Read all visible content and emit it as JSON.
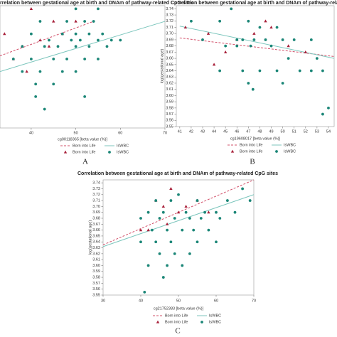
{
  "chart_data": [
    {
      "type": "scatter",
      "title": "rrelation between gestational age at birth and DNAm of pathway-related CpG sites",
      "x_label": "cg00118365 [beta value (%)]",
      "panel_label": "A",
      "xlim": [
        33,
        70
      ],
      "xticks": [
        40,
        50,
        60,
        70
      ],
      "ylim": [
        3.55,
        3.745
      ],
      "series": [
        {
          "name": "Born into Life",
          "color": "#a8203a",
          "marker": "triangle",
          "line_color": "#d2506a",
          "line_style": "dashed",
          "x": [
            40,
            45,
            34,
            38,
            42,
            47,
            50,
            36,
            44,
            39
          ],
          "values": [
            3.74,
            3.72,
            3.7,
            3.68,
            3.69,
            3.7,
            3.72,
            3.66,
            3.68,
            3.64
          ],
          "trend": {
            "x": [
              33,
              54
            ],
            "values": [
              3.665,
              3.72
            ]
          }
        },
        {
          "name": "IsWBC",
          "color": "#1b8677",
          "marker": "circle",
          "line_color": "#7cc6bd",
          "line_style": "solid",
          "x": [
            50,
            55,
            42,
            48,
            52,
            54,
            40,
            47,
            50,
            53,
            56,
            44,
            49,
            51,
            55,
            58,
            60,
            38,
            43,
            46,
            50,
            53,
            57,
            36,
            40,
            45,
            48,
            52,
            55,
            38,
            42,
            47,
            50,
            41,
            45,
            41,
            52,
            43
          ],
          "values": [
            3.74,
            3.74,
            3.72,
            3.72,
            3.72,
            3.72,
            3.7,
            3.7,
            3.7,
            3.7,
            3.7,
            3.69,
            3.69,
            3.69,
            3.69,
            3.69,
            3.69,
            3.68,
            3.68,
            3.68,
            3.68,
            3.68,
            3.68,
            3.66,
            3.66,
            3.66,
            3.66,
            3.66,
            3.66,
            3.64,
            3.64,
            3.64,
            3.64,
            3.62,
            3.62,
            3.6,
            3.6,
            3.58
          ],
          "trend": {
            "x": [
              33,
              70
            ],
            "values": [
              3.64,
              3.72
            ]
          }
        }
      ]
    },
    {
      "type": "scatter",
      "title": "Correlation between gestational age at birth and DNAm of pathway-related",
      "x_label": "cg19608017 [beta value (%)]",
      "y_label": "log(gestational age)",
      "panel_label": "B",
      "xlim": [
        40.7,
        54.5
      ],
      "xticks": [
        41,
        42,
        43,
        44,
        45,
        46,
        47,
        48,
        49,
        50,
        51,
        52,
        53,
        54
      ],
      "ylim": [
        3.55,
        3.745
      ],
      "yticks": [
        3.55,
        3.56,
        3.57,
        3.58,
        3.59,
        {
          "value": 3.6,
          "label": "3.60"
        },
        3.61,
        3.62,
        3.63,
        3.64,
        3.65,
        3.66,
        3.67,
        3.68,
        3.69,
        {
          "value": 3.7,
          "label": "3.70"
        },
        3.71,
        3.72,
        3.73,
        3.74
      ],
      "series": [
        {
          "name": "Born into Life",
          "color": "#a8203a",
          "marker": "triangle",
          "line_color": "#d2506a",
          "line_style": "dashed",
          "x": [
            41.5,
            43.5,
            45,
            46,
            47.5,
            48.5,
            49,
            50.5,
            44,
            52
          ],
          "values": [
            3.71,
            3.7,
            3.67,
            3.69,
            3.7,
            3.72,
            3.71,
            3.68,
            3.65,
            3.67
          ],
          "trend": {
            "x": [
              41,
              54.5
            ],
            "values": [
              3.693,
              3.663
            ]
          }
        },
        {
          "name": "IsWBC",
          "color": "#1b8677",
          "marker": "circle",
          "line_color": "#7cc6bd",
          "line_style": "solid",
          "x": [
            45.5,
            42,
            44.5,
            47,
            48,
            49.5,
            43,
            46,
            46.5,
            47.5,
            48.5,
            50,
            51,
            52.5,
            45,
            46,
            47.2,
            49,
            50.5,
            53,
            44.5,
            46.5,
            48,
            49.5,
            51.5,
            52.5,
            53.5,
            47,
            47.4,
            50,
            53.5,
            54
          ],
          "values": [
            3.74,
            3.72,
            3.72,
            3.72,
            3.71,
            3.71,
            3.69,
            3.69,
            3.69,
            3.69,
            3.69,
            3.69,
            3.69,
            3.69,
            3.68,
            3.68,
            3.68,
            3.68,
            3.66,
            3.66,
            3.64,
            3.64,
            3.64,
            3.64,
            3.64,
            3.64,
            3.64,
            3.62,
            3.61,
            3.62,
            3.57,
            3.58
          ],
          "trend": {
            "x": [
              41,
              54.5
            ],
            "values": [
              3.712,
              3.66
            ]
          }
        }
      ]
    },
    {
      "type": "scatter",
      "title": "Correlation between gestational age at birth and DNAm of pathway-related CpG sites",
      "x_label": "cg21752383 [beta value (%)]",
      "y_label": "log(gestational age)",
      "panel_label": "C",
      "xlim": [
        30,
        70
      ],
      "xticks": [
        30,
        40,
        50,
        60,
        70
      ],
      "ylim": [
        3.55,
        3.745
      ],
      "yticks": [
        3.55,
        3.56,
        3.57,
        3.58,
        3.59,
        {
          "value": 3.6,
          "label": "3.60"
        },
        3.61,
        3.62,
        3.63,
        3.64,
        3.65,
        3.66,
        3.67,
        3.68,
        3.69,
        {
          "value": 3.7,
          "label": "3.70"
        },
        3.71,
        3.72,
        3.73,
        3.74
      ],
      "series": [
        {
          "name": "Born into Life",
          "color": "#a8203a",
          "marker": "triangle",
          "line_color": "#d2506a",
          "line_style": "dashed",
          "x": [
            48,
            44,
            46,
            52,
            55,
            42,
            50,
            58,
            47,
            40
          ],
          "values": [
            3.73,
            3.71,
            3.7,
            3.7,
            3.71,
            3.66,
            3.69,
            3.69,
            3.67,
            3.66
          ],
          "trend": {
            "x": [
              30,
              70
            ],
            "values": [
              3.635,
              3.745
            ]
          }
        },
        {
          "name": "IsWBC",
          "color": "#1b8677",
          "marker": "circle",
          "line_color": "#7cc6bd",
          "line_style": "solid",
          "x": [
            50,
            67,
            44,
            48,
            55,
            63,
            69,
            42,
            46,
            52,
            57,
            60,
            65,
            40,
            45,
            49,
            53,
            56,
            61,
            43,
            47,
            51,
            54,
            58,
            40,
            44,
            48,
            55,
            60,
            45,
            49,
            53,
            42,
            47,
            51,
            46,
            41
          ],
          "values": [
            3.72,
            3.73,
            3.71,
            3.71,
            3.71,
            3.71,
            3.71,
            3.69,
            3.69,
            3.69,
            3.69,
            3.69,
            3.69,
            3.68,
            3.68,
            3.68,
            3.68,
            3.68,
            3.68,
            3.66,
            3.66,
            3.66,
            3.66,
            3.66,
            3.64,
            3.64,
            3.64,
            3.64,
            3.64,
            3.62,
            3.62,
            3.62,
            3.6,
            3.6,
            3.6,
            3.58,
            3.555
          ],
          "trend": {
            "x": [
              30,
              70
            ],
            "values": [
              3.632,
              3.72
            ]
          }
        }
      ]
    }
  ]
}
